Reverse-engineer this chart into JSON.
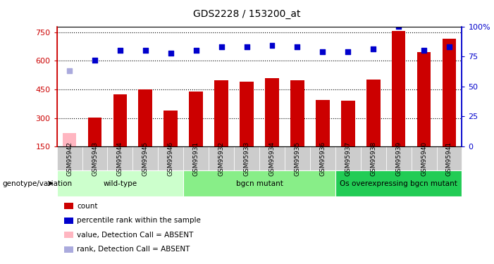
{
  "title": "GDS2228 / 153200_at",
  "samples": [
    "GSM95942",
    "GSM95943",
    "GSM95944",
    "GSM95945",
    "GSM95946",
    "GSM95931",
    "GSM95932",
    "GSM95933",
    "GSM95934",
    "GSM95935",
    "GSM95936",
    "GSM95937",
    "GSM95938",
    "GSM95939",
    "GSM95940",
    "GSM95941"
  ],
  "counts": [
    220,
    302,
    423,
    450,
    338,
    440,
    497,
    492,
    508,
    498,
    393,
    390,
    500,
    756,
    645,
    715
  ],
  "absent_mask": [
    true,
    false,
    false,
    false,
    false,
    false,
    false,
    false,
    false,
    false,
    false,
    false,
    false,
    false,
    false,
    false
  ],
  "percentile_ranks": [
    63,
    72,
    80,
    80,
    78,
    80,
    83,
    83,
    84,
    83,
    79,
    79,
    81,
    100,
    80,
    83
  ],
  "absent_rank_mask": [
    true,
    false,
    false,
    false,
    false,
    false,
    false,
    false,
    false,
    false,
    false,
    false,
    false,
    false,
    false,
    false
  ],
  "bar_color_normal": "#CC0000",
  "bar_color_absent": "#FFB6C1",
  "rank_color_normal": "#0000CC",
  "rank_color_absent": "#AAAADD",
  "ylim_left": [
    150,
    780
  ],
  "ylim_right": [
    0,
    100
  ],
  "yticks_left": [
    150,
    300,
    450,
    600,
    750
  ],
  "yticks_right": [
    0,
    25,
    50,
    75,
    100
  ],
  "yticklabels_right": [
    "0",
    "25",
    "50",
    "75",
    "100%"
  ],
  "groups": [
    {
      "label": "wild-type",
      "start": 0,
      "end": 5,
      "color": "#CCFFCC"
    },
    {
      "label": "bgcn mutant",
      "start": 5,
      "end": 11,
      "color": "#88EE88"
    },
    {
      "label": "Os overexpressing bgcn mutant",
      "start": 11,
      "end": 16,
      "color": "#22CC55"
    }
  ],
  "sample_bg_color": "#CCCCCC",
  "genotype_label": "genotype/variation",
  "background_color": "#FFFFFF",
  "bar_width": 0.55,
  "rank_marker_size": 25
}
